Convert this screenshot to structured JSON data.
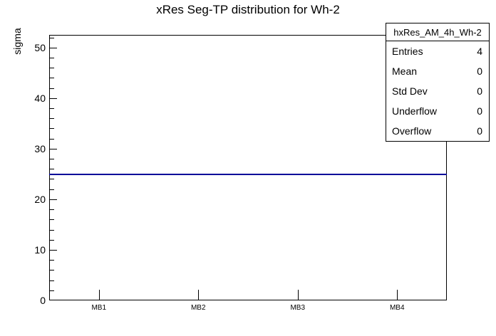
{
  "title": "xRes Seg-TP distribution for Wh-2",
  "chart_data": {
    "type": "line",
    "title": "xRes Seg-TP distribution for Wh-2",
    "xlabel": "",
    "ylabel": "sigma",
    "categories": [
      "MB1",
      "MB2",
      "MB3",
      "MB4"
    ],
    "series": [
      {
        "name": "hxRes_AM_4h_Wh-2",
        "values": [
          25,
          25,
          25,
          25
        ]
      }
    ],
    "ylim": [
      0,
      52.5
    ],
    "ytick_major_step": 10,
    "ytick_minor_step": 2,
    "grid": false,
    "legend_position": "none"
  },
  "stats_box": {
    "title": "hxRes_AM_4h_Wh-2",
    "rows": [
      {
        "label": "Entries",
        "value": "4"
      },
      {
        "label": "Mean",
        "value": "0"
      },
      {
        "label": "Std Dev",
        "value": "0"
      },
      {
        "label": "Underflow",
        "value": "0"
      },
      {
        "label": "Overflow",
        "value": "0"
      }
    ]
  },
  "colors": {
    "line": "#000099",
    "axis": "#000000",
    "background": "#ffffff"
  }
}
